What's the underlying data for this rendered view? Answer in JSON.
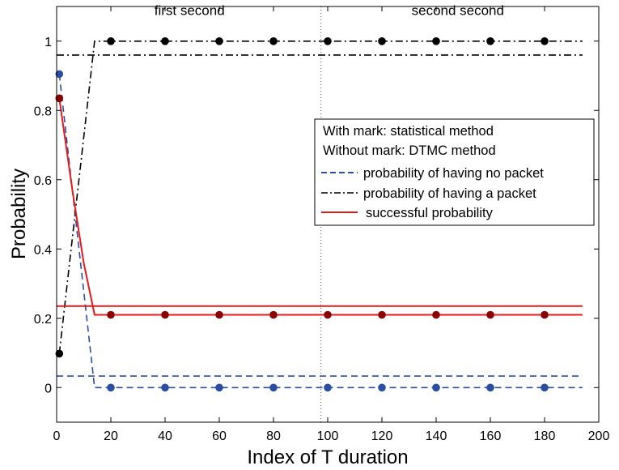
{
  "chart_data": {
    "type": "line",
    "xlabel": "Index of T duration",
    "ylabel": "Probability",
    "xlim": [
      0,
      200
    ],
    "ylim": [
      -0.1,
      1.1
    ],
    "x_ticks": [
      "0",
      "20",
      "40",
      "60",
      "80",
      "100",
      "120",
      "140",
      "160",
      "180",
      "200"
    ],
    "y_ticks": [
      "0",
      "0.2",
      "0.4",
      "0.6",
      "0.8",
      "1"
    ],
    "grid": false,
    "annotations": [
      {
        "text": "first second",
        "x": 49,
        "y": 1.075
      },
      {
        "text": "second second",
        "x": 148,
        "y": 1.075
      }
    ],
    "vline_x": 97.5,
    "legend": {
      "position": "center-right",
      "lines": [
        {
          "label": "With mark: statistical method",
          "style": "none"
        },
        {
          "label": "Without mark: DTMC method",
          "style": "none"
        },
        {
          "label": "probability of having no packet",
          "style": "dashed",
          "color": "#2b4ea2"
        },
        {
          "label": "probability of having a packet",
          "style": "dashdot",
          "color": "#000000"
        },
        {
          "label": "successful probability",
          "style": "solid",
          "color": "#e41a1c"
        }
      ]
    },
    "series": [
      {
        "name": "probability of having no packet",
        "style": "dashed",
        "color": "#2b4ea2",
        "x": [
          1,
          14,
          194
        ],
        "values": [
          0.905,
          0.0,
          0.0
        ]
      },
      {
        "style": "dashed",
        "color": "#2b4ea2",
        "x": [
          0,
          194
        ],
        "values": [
          0.033,
          0.033
        ]
      },
      {
        "name": "probability of having a packet",
        "style": "dashdot",
        "color": "#000000",
        "x": [
          1,
          14,
          194
        ],
        "values": [
          0.098,
          1.0,
          1.0
        ]
      },
      {
        "style": "dashdot",
        "color": "#000000",
        "x": [
          0,
          194
        ],
        "values": [
          0.96,
          0.96
        ]
      },
      {
        "name": "successful probability",
        "style": "solid",
        "color": "#e41a1c",
        "x": [
          1,
          6,
          10,
          14,
          194
        ],
        "values": [
          0.835,
          0.56,
          0.36,
          0.21,
          0.21
        ]
      },
      {
        "style": "solid",
        "color": "#e41a1c",
        "x": [
          0,
          194
        ],
        "values": [
          0.235,
          0.235
        ]
      }
    ],
    "markers": [
      {
        "color": "#2b4ea2",
        "x": [
          1,
          20,
          40,
          60,
          80,
          100,
          120,
          140,
          160,
          180
        ],
        "values": [
          0.905,
          0.0,
          0.0,
          0.0,
          0.0,
          0.0,
          0.0,
          0.0,
          0.0,
          0.0
        ]
      },
      {
        "color": "#000000",
        "x": [
          1,
          20,
          40,
          60,
          80,
          100,
          120,
          140,
          160,
          180
        ],
        "values": [
          0.098,
          1.0,
          1.0,
          1.0,
          1.0,
          1.0,
          1.0,
          1.0,
          1.0,
          1.0
        ]
      },
      {
        "color": "#8b0000",
        "x": [
          1,
          20,
          40,
          60,
          80,
          100,
          120,
          140,
          160,
          180
        ],
        "values": [
          0.835,
          0.21,
          0.21,
          0.21,
          0.21,
          0.21,
          0.21,
          0.21,
          0.21,
          0.21
        ]
      }
    ]
  }
}
